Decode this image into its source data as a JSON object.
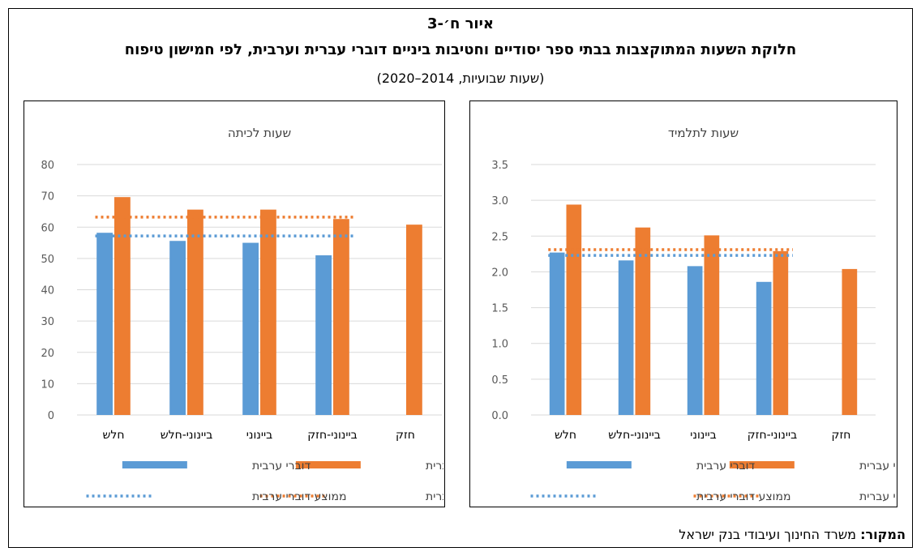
{
  "figure": {
    "label": "איור ח׳-3",
    "title": "חלוקת השעות המתוקצבות בבתי ספר יסודיים וחטיבות ביניים דוברי עברית וערבית, לפי חמישון טיפוח",
    "subtitle": "(שעות שבועיות, 2014–2020)",
    "source_label": "המקור:",
    "source_text": " משרד החינוך ועיבודי בנק ישראל"
  },
  "colors": {
    "arabic": "#5B9BD5",
    "hebrew": "#ED7D31",
    "grid": "#D9D9D9",
    "axis_text": "#595959"
  },
  "chart_data": [
    {
      "type": "bar",
      "title": "שעות לתלמיד",
      "categories": [
        "חלש",
        "ביינוני-חלש",
        "ביינוני",
        "ביינוני-חזק",
        "חזק"
      ],
      "ylim": [
        0,
        3.5
      ],
      "yticks": [
        "0.0",
        "0.5",
        "1.0",
        "1.5",
        "2.0",
        "2.5",
        "3.0",
        "3.5"
      ],
      "grid": true,
      "legend_position": "bottom",
      "series": [
        {
          "name": "דוברי ערבית",
          "color_key": "arabic",
          "values": [
            2.27,
            2.16,
            2.08,
            1.86,
            null
          ]
        },
        {
          "name": "דוברי עברית",
          "color_key": "hebrew",
          "values": [
            2.94,
            2.62,
            2.51,
            2.29,
            2.04
          ]
        }
      ],
      "averages": [
        {
          "name": "ממוצע דוברי ערבית",
          "color_key": "arabic",
          "value": 2.23
        },
        {
          "name": "ממוצע דוברי עברית",
          "color_key": "hebrew",
          "value": 2.31
        }
      ]
    },
    {
      "type": "bar",
      "title": "שעות לכיתה",
      "categories": [
        "חלש",
        "ביינוני-חלש",
        "ביינוני",
        "ביינוני-חזק",
        "חזק"
      ],
      "ylim": [
        0,
        80
      ],
      "yticks": [
        "0",
        "10",
        "20",
        "30",
        "40",
        "50",
        "60",
        "70",
        "80"
      ],
      "grid": true,
      "legend_position": "bottom",
      "series": [
        {
          "name": "דוברי ערבית",
          "color_key": "arabic",
          "values": [
            58.2,
            55.6,
            55.0,
            51.0,
            null
          ]
        },
        {
          "name": "דוברי עברית",
          "color_key": "hebrew",
          "values": [
            69.6,
            65.6,
            65.6,
            62.6,
            60.8
          ]
        }
      ],
      "averages": [
        {
          "name": "ממוצע דוברי ערבית",
          "color_key": "arabic",
          "value": 57.2
        },
        {
          "name": "ממוצע דוברי עברית",
          "color_key": "hebrew",
          "value": 63.2
        }
      ]
    }
  ]
}
